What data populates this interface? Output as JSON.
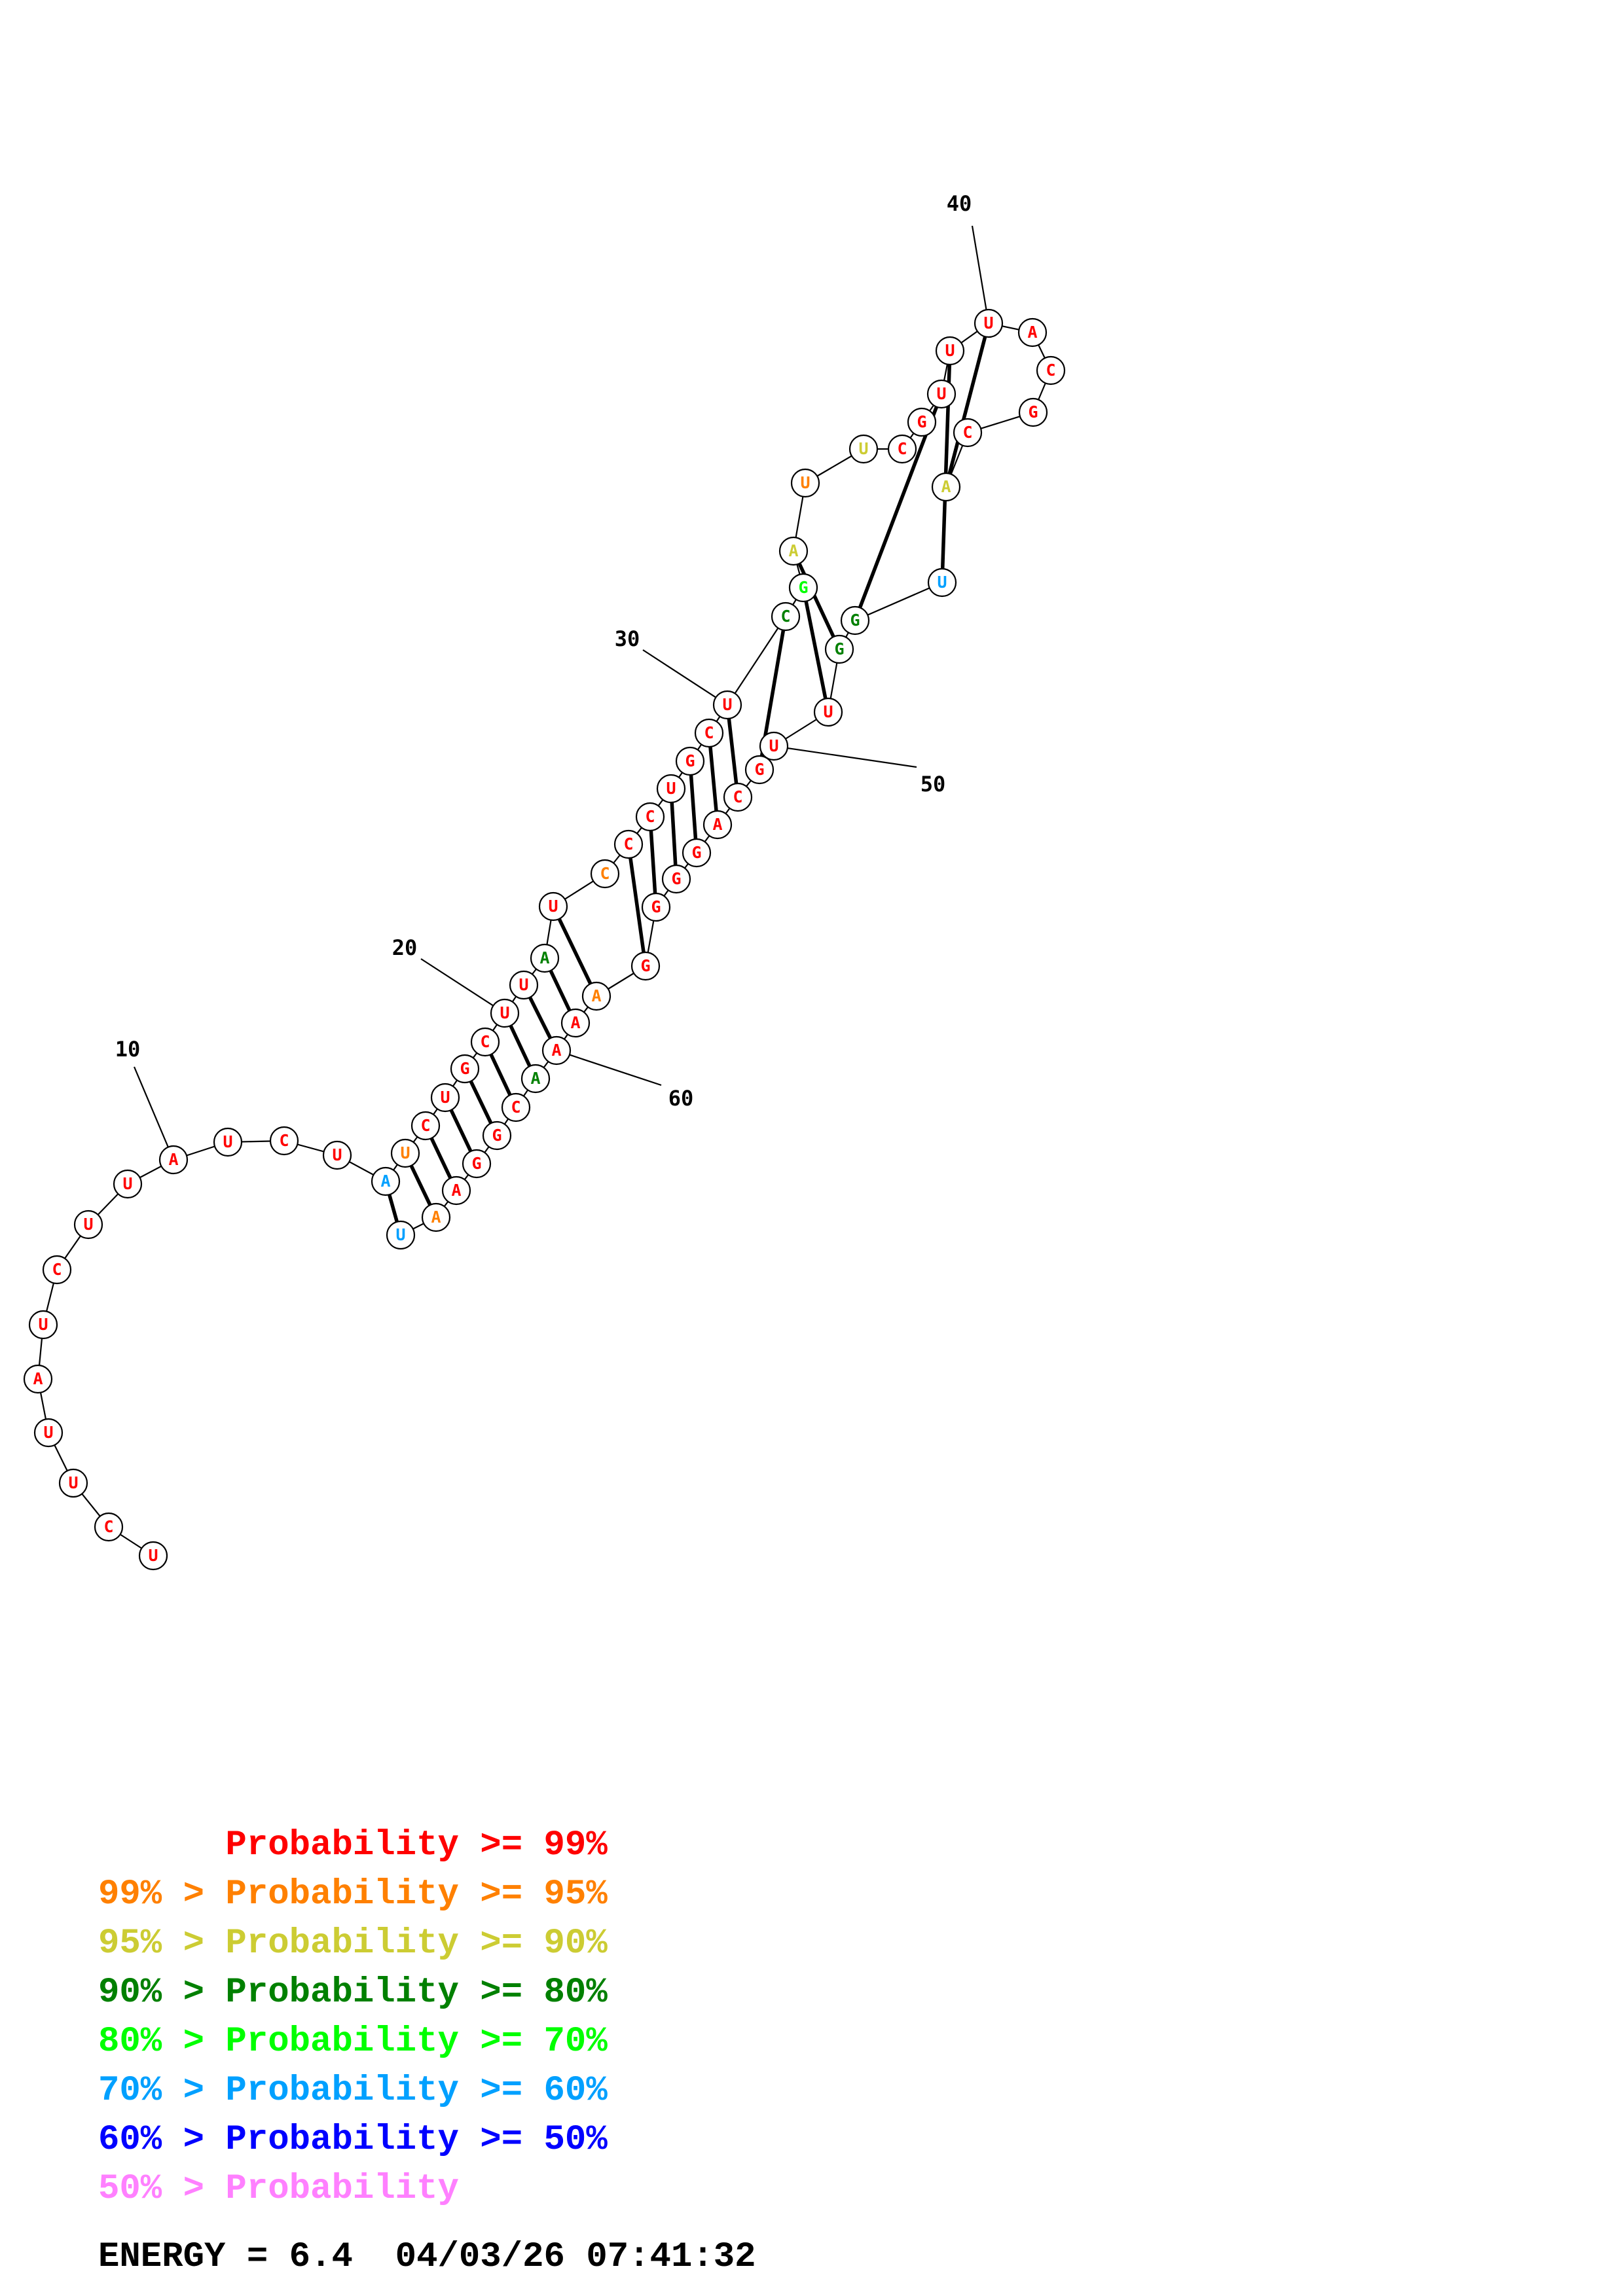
{
  "sequence": [
    "U",
    "C",
    "U",
    "U",
    "A",
    "U",
    "C",
    "U",
    "U",
    "A",
    "U",
    "C",
    "U",
    "A",
    "U",
    "C",
    "U",
    "G",
    "C",
    "U",
    "U",
    "A",
    "U",
    "C",
    "C",
    "C",
    "U",
    "G",
    "C",
    "U",
    "C",
    "G",
    "A",
    "U",
    "U",
    "C",
    "G",
    "U",
    "U",
    "U",
    "A",
    "C",
    "G",
    "C",
    "A",
    "U",
    "G",
    "G",
    "U",
    "U",
    "G",
    "C",
    "A",
    "G",
    "G",
    "G",
    "G",
    "A",
    "A",
    "A",
    "A",
    "C",
    "G",
    "G",
    "A",
    "A",
    "U"
  ],
  "probability_class": [
    0,
    0,
    0,
    0,
    0,
    0,
    0,
    0,
    0,
    0,
    0,
    0,
    0,
    5,
    1,
    0,
    0,
    0,
    0,
    0,
    0,
    3,
    0,
    1,
    0,
    0,
    0,
    0,
    0,
    0,
    3,
    4,
    2,
    1,
    2,
    0,
    0,
    0,
    0,
    0,
    0,
    0,
    0,
    0,
    2,
    5,
    3,
    3,
    0,
    0,
    0,
    0,
    0,
    0,
    0,
    0,
    0,
    1,
    0,
    0,
    3,
    0,
    0,
    0,
    0,
    1,
    5
  ],
  "pairs": [
    [
      14,
      67
    ],
    [
      15,
      66
    ],
    [
      16,
      65
    ],
    [
      17,
      64
    ],
    [
      18,
      63
    ],
    [
      19,
      62
    ],
    [
      20,
      61
    ],
    [
      21,
      60
    ],
    [
      22,
      59
    ],
    [
      23,
      58
    ],
    [
      25,
      57
    ],
    [
      26,
      56
    ],
    [
      27,
      55
    ],
    [
      28,
      54
    ],
    [
      29,
      53
    ],
    [
      30,
      52
    ],
    [
      31,
      51
    ],
    [
      32,
      49
    ],
    [
      33,
      48
    ],
    [
      38,
      47
    ],
    [
      39,
      46
    ],
    [
      40,
      45
    ]
  ],
  "position_labels": [
    {
      "n": 10,
      "text": "10"
    },
    {
      "n": 20,
      "text": "20"
    },
    {
      "n": 30,
      "text": "30"
    },
    {
      "n": 40,
      "text": "40"
    },
    {
      "n": 50,
      "text": "50"
    },
    {
      "n": 60,
      "text": "60"
    }
  ],
  "colors": [
    "#ff0000",
    "#ff8000",
    "#cccc33",
    "#008000",
    "#00ff00",
    "#00a0ff",
    "#0000ff",
    "#ff80ff"
  ],
  "legend": [
    "      Probability >= 99%",
    "99% > Probability >= 95%",
    "95% > Probability >= 90%",
    "90% > Probability >= 80%",
    "80% > Probability >= 70%",
    "70% > Probability >= 60%",
    "60% > Probability >= 50%",
    "50% > Probability"
  ],
  "energy_line": "ENERGY = 6.4  04/03/26 07:41:32"
}
